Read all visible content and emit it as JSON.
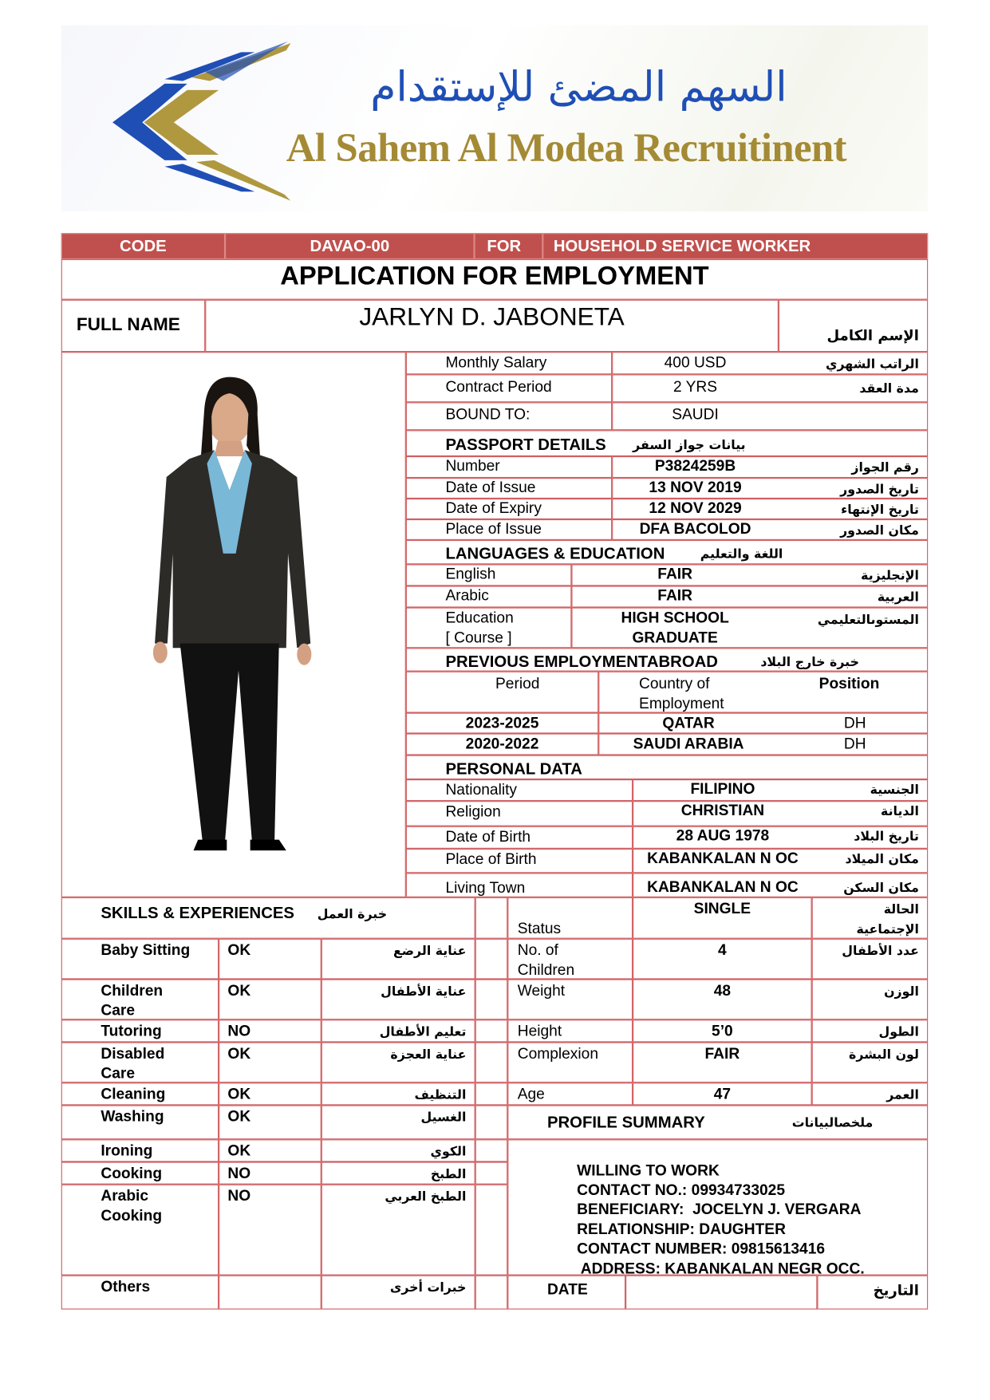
{
  "logo": {
    "arabic": "السهم المضئ للإستقدام",
    "english": "Al Sahem Al Modea Recruitinent",
    "colors": {
      "blue": "#1f4fb5",
      "gold": "#a48a35"
    }
  },
  "header": {
    "code_label": "CODE",
    "code_value": "DAVAO-00",
    "for_label": "FOR",
    "for_value": "HOUSEHOLD SERVICE WORKER",
    "bar_color": "#c0504d"
  },
  "title": "APPLICATION FOR EMPLOYMENT",
  "full_name": {
    "label": "FULL NAME",
    "value": "JARLYN D. JABONETA",
    "arabic": "الإسم الكامل"
  },
  "contract": [
    {
      "label": "Monthly Salary",
      "value": "400 USD",
      "arabic": "الراتب الشهري"
    },
    {
      "label": "Contract Period",
      "value": "2 YRS",
      "arabic": "مدة العقد"
    },
    {
      "label": "BOUND TO:",
      "value": "SAUDI",
      "arabic": ""
    }
  ],
  "passport": {
    "title": "PASSPORT DETAILS",
    "title_ar": "بيانات جواز السفر",
    "rows": [
      {
        "label": "Number",
        "value": "P3824259B",
        "arabic": "رقم الجواز"
      },
      {
        "label": "Date of Issue",
        "value": "13 NOV 2019",
        "arabic": "تاريخ الصدور"
      },
      {
        "label": "Date of Expiry",
        "value": "12 NOV 2029",
        "arabic": "تاريخ الإنتهاء"
      },
      {
        "label": "Place of Issue",
        "value": "DFA BACOLOD",
        "arabic": "مكان الصدور"
      }
    ]
  },
  "languages": {
    "title": "LANGUAGES & EDUCATION",
    "title_ar": "اللغة والتعليم",
    "rows": [
      {
        "label": "English",
        "value": "FAIR",
        "arabic": "الإنجليزية"
      },
      {
        "label": "Arabic",
        "value": "FAIR",
        "arabic": "العربية"
      }
    ],
    "education": {
      "label": "Education",
      "label2": "[ Course ]",
      "value": "HIGH SCHOOL",
      "value2": "GRADUATE",
      "arabic": "المستوىالتعليمي"
    }
  },
  "employment": {
    "title": "PREVIOUS EMPLOYMENTABROAD",
    "title_ar": "خبرة خارج البلاد",
    "headers": {
      "period": "Period",
      "country": "Country of",
      "country2": "Employment",
      "position": "Position"
    },
    "rows": [
      {
        "period": "2023-2025",
        "country": "QATAR",
        "position": "DH"
      },
      {
        "period": "2020-2022",
        "country": "SAUDI ARABIA",
        "position": "DH"
      }
    ]
  },
  "personal": {
    "title": "PERSONAL DATA",
    "rows": [
      {
        "label": "Nationality",
        "value": "FILIPINO",
        "arabic": "الجنسية"
      },
      {
        "label": "Religion",
        "value": "CHRISTIAN",
        "arabic": "الديانة"
      },
      {
        "label": "Date of Birth",
        "value": "28 AUG 1978",
        "arabic": "تاريخ البلاد"
      },
      {
        "label": "Place of Birth",
        "value": "KABANKALAN N OC",
        "arabic": "مكان الميلاد"
      },
      {
        "label": "Living Town",
        "value": "KABANKALAN N OC",
        "arabic": "مكان السكن"
      }
    ]
  },
  "skills": {
    "title": "SKILLS & EXPERIENCES",
    "title_ar": "خبرة العمل",
    "rows": [
      {
        "label": "Baby Sitting",
        "label2": "",
        "value": "OK",
        "arabic": "عناية الرضع"
      },
      {
        "label": "Children",
        "label2": "Care",
        "value": "OK",
        "arabic": "عناية الأطفال"
      },
      {
        "label": "Tutoring",
        "label2": "",
        "value": "NO",
        "arabic": "تعليم الأطفال"
      },
      {
        "label": "Disabled",
        "label2": "Care",
        "value": "OK",
        "arabic": "عناية العجزة"
      },
      {
        "label": "Cleaning",
        "label2": "",
        "value": "OK",
        "arabic": "التنظيف"
      },
      {
        "label": "Washing",
        "label2": "",
        "value": "OK",
        "arabic": "الغسيل"
      },
      {
        "label": "Ironing",
        "label2": "",
        "value": "OK",
        "arabic": "الكوي"
      },
      {
        "label": "Cooking",
        "label2": "",
        "value": "NO",
        "arabic": "الطبخ"
      },
      {
        "label": "Arabic",
        "label2": "Cooking",
        "value": "NO",
        "arabic": "الطبخ العربي"
      },
      {
        "label": "Others",
        "label2": "",
        "value": "",
        "arabic": "خبرات أخرى"
      }
    ]
  },
  "status_rows": [
    {
      "label": "",
      "label2": "Status",
      "value": "SINGLE",
      "arabic": "الحالة",
      "arabic2": "الإجتماعية"
    },
    {
      "label": "No. of",
      "label2": "Children",
      "value": "4",
      "arabic": "عدد الأطفال",
      "arabic2": ""
    },
    {
      "label": "Weight",
      "label2": "",
      "value": "48",
      "arabic": "الوزن",
      "arabic2": ""
    },
    {
      "label": "Height",
      "label2": "",
      "value": "5’0",
      "arabic": "الطول",
      "arabic2": ""
    },
    {
      "label": "Complexion",
      "label2": "",
      "value": "FAIR",
      "arabic": "لون البشرة",
      "arabic2": ""
    },
    {
      "label": "Age",
      "label2": "",
      "value": "47",
      "arabic": "العمر",
      "arabic2": ""
    }
  ],
  "profile": {
    "title": "PROFILE SUMMARY",
    "title_ar": "ملخصالبيانات",
    "lines": [
      "WILLING TO WORK",
      "CONTACT NO.: 09934733025",
      "BENEFICIARY:  JOCELYN J. VERGARA",
      "RELATIONSHIP: DAUGHTER",
      "CONTACT NUMBER: 09815613416",
      " ADDRESS: KABANKALAN NEGR OCC."
    ]
  },
  "date": {
    "label": "DATE",
    "value": "",
    "arabic": "التاريخ"
  },
  "border_color": "#cf5f62"
}
